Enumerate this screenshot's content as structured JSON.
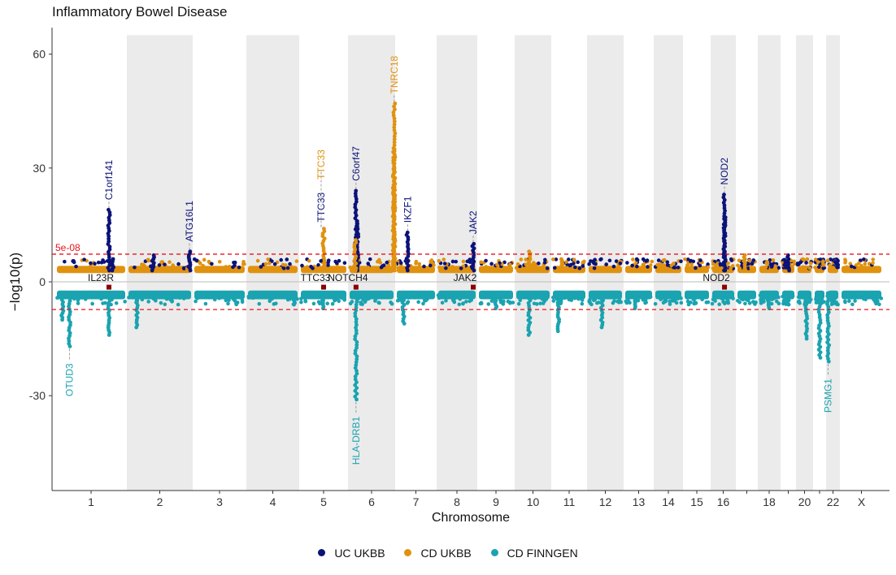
{
  "title": "Inflammatory Bowel Disease",
  "colors": {
    "uc_ukbb": "#0b1278",
    "cd_ukbb": "#e0920f",
    "cd_finngen": "#1aa3b0",
    "threshold": "#e8141c",
    "marker": "#8b0000",
    "band": "#ebebeb"
  },
  "legend": [
    "UC UKBB",
    "CD UKBB",
    "CD FINNGEN"
  ],
  "chart_data": {
    "type": "scatter",
    "subtype": "miami",
    "title": "Inflammatory Bowel Disease",
    "xlabel": "Chromosome",
    "ylabel": "−log10(p)",
    "ylim": [
      -55,
      67
    ],
    "yticks": [
      60,
      30,
      0,
      -30
    ],
    "ytick_labels": [
      "60",
      "30",
      "0",
      "-30"
    ],
    "threshold": 7.3,
    "threshold_label": "5e-08",
    "chromosomes": [
      "1",
      "2",
      "3",
      "4",
      "5",
      "6",
      "7",
      "8",
      "9",
      "10",
      "11",
      "12",
      "13",
      "14",
      "15",
      "16",
      "17",
      "18",
      "19",
      "20",
      "21",
      "22",
      "X"
    ],
    "chromosome_tick_labels": [
      "1",
      "2",
      "3",
      "4",
      "5",
      "6",
      "7",
      "8",
      "9",
      "10",
      "11",
      "12",
      "13",
      "14",
      "15",
      "16",
      "",
      "18",
      "",
      "20",
      "",
      "22",
      "X"
    ],
    "grid": false,
    "legend_position": "bottom",
    "series": [
      {
        "name": "UC UKBB",
        "direction": "up",
        "peaks": [
          {
            "chr": "1",
            "pos": 0.75,
            "y": 19
          },
          {
            "chr": "1",
            "pos": 0.8,
            "y": 6
          },
          {
            "chr": "2",
            "pos": 0.95,
            "y": 8
          },
          {
            "chr": "6",
            "pos": 0.17,
            "y": 24
          },
          {
            "chr": "6",
            "pos": 0.2,
            "y": 16
          },
          {
            "chr": "7",
            "pos": 0.3,
            "y": 13
          },
          {
            "chr": "8",
            "pos": 0.9,
            "y": 10
          },
          {
            "chr": "16",
            "pos": 0.55,
            "y": 23
          },
          {
            "chr": "16",
            "pos": 0.55,
            "y": 17
          },
          {
            "chr": "2",
            "pos": 0.4,
            "y": 7
          },
          {
            "chr": "19",
            "pos": 0.5,
            "y": 7
          }
        ]
      },
      {
        "name": "CD UKBB",
        "direction": "up",
        "peaks": [
          {
            "chr": "5",
            "pos": 0.5,
            "y": 14
          },
          {
            "chr": "6",
            "pos": 0.15,
            "y": 11
          },
          {
            "chr": "6",
            "pos": 0.98,
            "y": 47
          },
          {
            "chr": "6",
            "pos": 0.98,
            "y": 35
          },
          {
            "chr": "6",
            "pos": 0.97,
            "y": 30
          },
          {
            "chr": "10",
            "pos": 0.4,
            "y": 8
          },
          {
            "chr": "11",
            "pos": 0.3,
            "y": 6
          },
          {
            "chr": "17",
            "pos": 0.4,
            "y": 7
          }
        ]
      },
      {
        "name": "CD FINNGEN",
        "direction": "down",
        "peaks": [
          {
            "chr": "1",
            "pos": 0.2,
            "y": 17
          },
          {
            "chr": "1",
            "pos": 0.75,
            "y": 14
          },
          {
            "chr": "1",
            "pos": 0.1,
            "y": 10
          },
          {
            "chr": "2",
            "pos": 0.15,
            "y": 12
          },
          {
            "chr": "4",
            "pos": 0.9,
            "y": 6
          },
          {
            "chr": "5",
            "pos": 0.5,
            "y": 7
          },
          {
            "chr": "6",
            "pos": 0.17,
            "y": 31
          },
          {
            "chr": "7",
            "pos": 0.2,
            "y": 11
          },
          {
            "chr": "10",
            "pos": 0.4,
            "y": 14
          },
          {
            "chr": "11",
            "pos": 0.2,
            "y": 13
          },
          {
            "chr": "12",
            "pos": 0.4,
            "y": 12
          },
          {
            "chr": "20",
            "pos": 0.6,
            "y": 15
          },
          {
            "chr": "21",
            "pos": 0.5,
            "y": 20
          },
          {
            "chr": "22",
            "pos": 0.15,
            "y": 21
          },
          {
            "chr": "13",
            "pos": 0.4,
            "y": 7
          },
          {
            "chr": "18",
            "pos": 0.5,
            "y": 7
          },
          {
            "chr": "9",
            "pos": 0.5,
            "y": 7
          }
        ]
      }
    ],
    "gene_labels_top": [
      {
        "label": "C1orf141",
        "chr": "1",
        "pos": 0.75,
        "y": 19,
        "series": "UC UKBB"
      },
      {
        "label": "ATG16L1",
        "chr": "2",
        "pos": 0.95,
        "y": 8,
        "series": "UC UKBB"
      },
      {
        "label": "TTC33",
        "chr": "5",
        "pos": 0.5,
        "y": 14,
        "series": "UC UKBB"
      },
      {
        "label": "TTC33",
        "chr": "5",
        "pos": 0.5,
        "y": 14,
        "series": "CD UKBB"
      },
      {
        "label": "C6orf47",
        "chr": "6",
        "pos": 0.17,
        "y": 24,
        "series": "UC UKBB"
      },
      {
        "label": "TNRC18",
        "chr": "6",
        "pos": 0.98,
        "y": 47,
        "series": "CD UKBB"
      },
      {
        "label": "IKZF1",
        "chr": "7",
        "pos": 0.3,
        "y": 13,
        "series": "UC UKBB"
      },
      {
        "label": "JAK2",
        "chr": "8",
        "pos": 0.9,
        "y": 10,
        "series": "UC UKBB"
      },
      {
        "label": "NOD2",
        "chr": "16",
        "pos": 0.55,
        "y": 23,
        "series": "UC UKBB"
      }
    ],
    "gene_labels_bottom": [
      {
        "label": "OTUD3",
        "chr": "1",
        "pos": 0.2,
        "y": -17
      },
      {
        "label": "HLA-DRB1",
        "chr": "6",
        "pos": 0.17,
        "y": -31
      },
      {
        "label": "PSMG1",
        "chr": "22",
        "pos": 0.15,
        "y": -21
      }
    ],
    "shared_loci": [
      {
        "label": "IL23R",
        "chr": "1",
        "pos": 0.75
      },
      {
        "label": "TTC33",
        "chr": "5",
        "pos": 0.5
      },
      {
        "label": "NOTCH4",
        "chr": "6",
        "pos": 0.17
      },
      {
        "label": "JAK2",
        "chr": "8",
        "pos": 0.9
      },
      {
        "label": "NOD2",
        "chr": "16",
        "pos": 0.55
      }
    ]
  }
}
